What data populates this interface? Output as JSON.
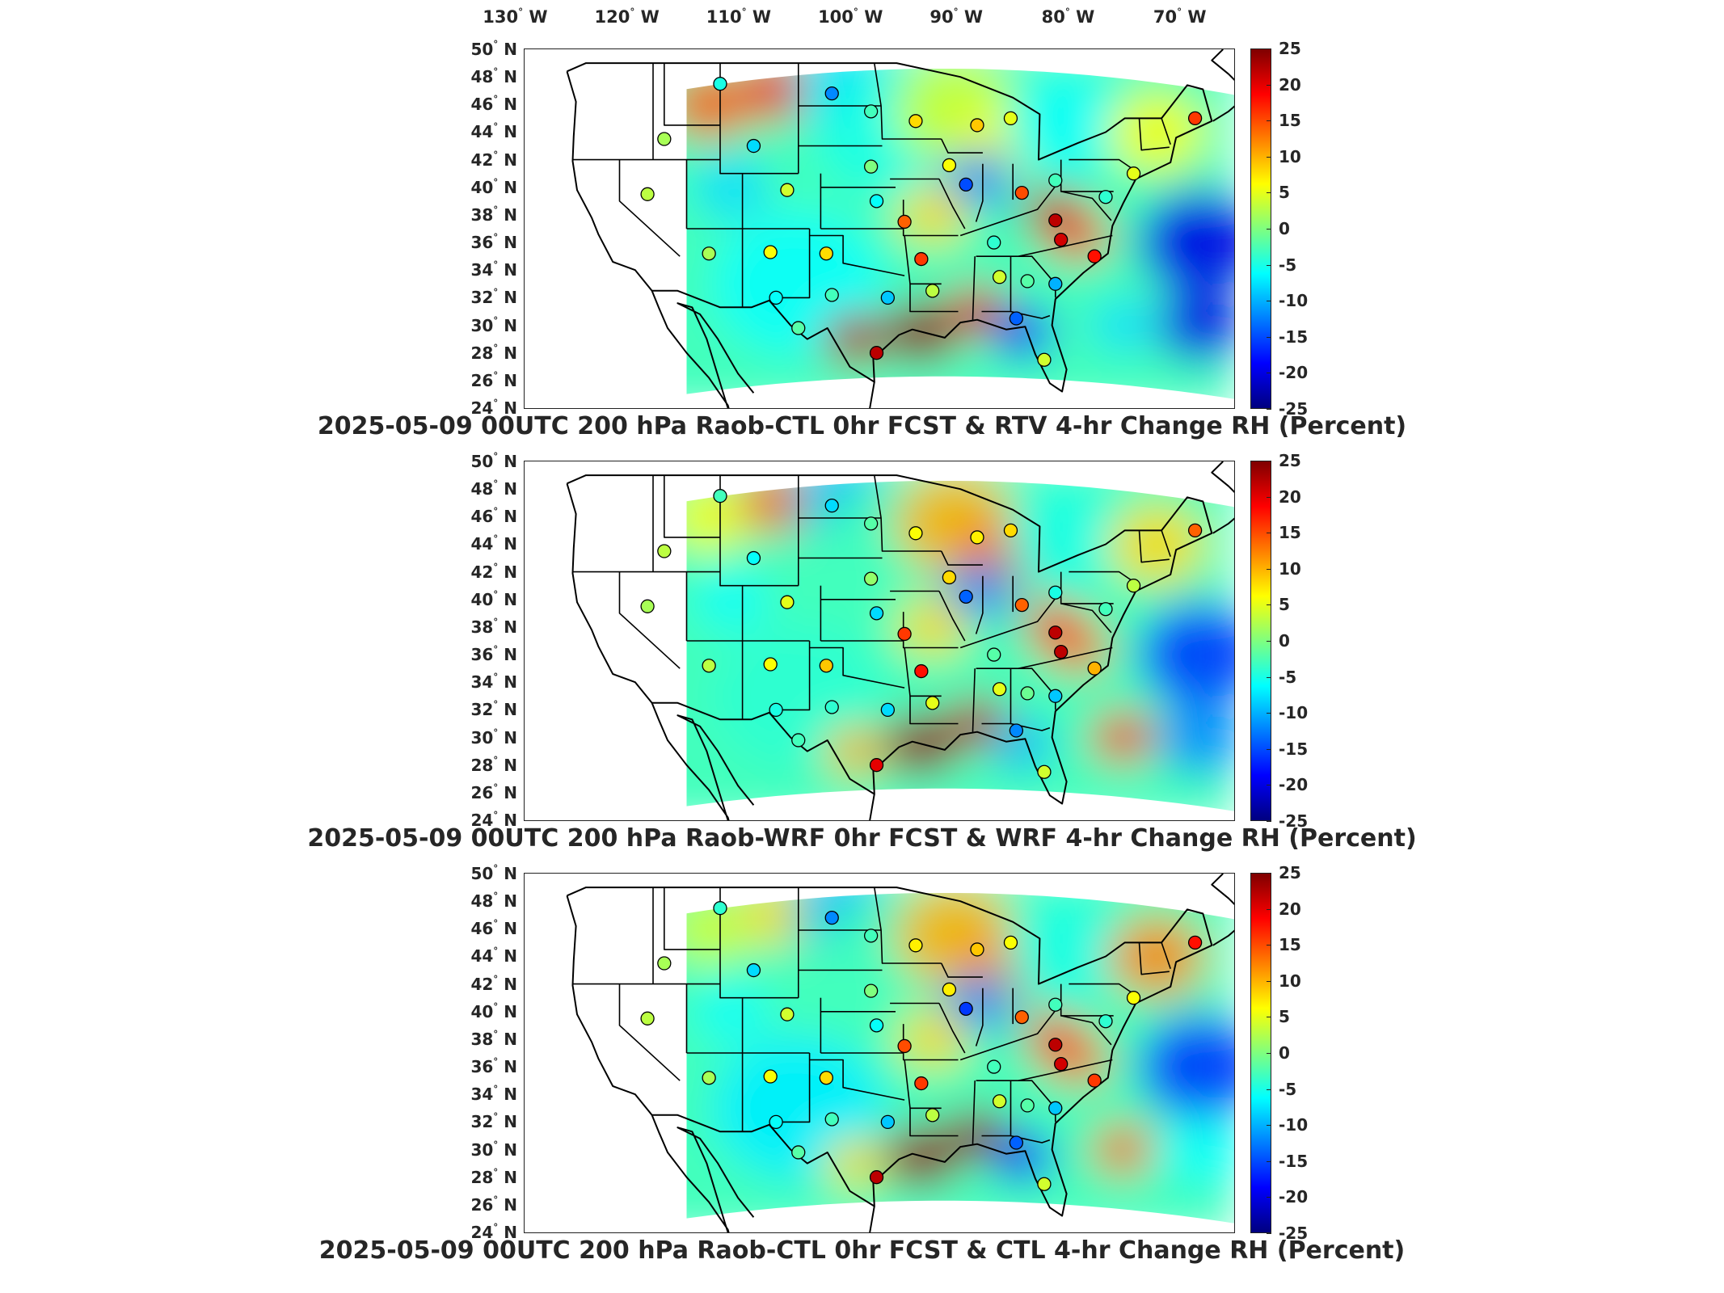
{
  "lon_labels": [
    {
      "deg": "130",
      "dir": "W"
    },
    {
      "deg": "120",
      "dir": "W"
    },
    {
      "deg": "110",
      "dir": "W"
    },
    {
      "deg": "100",
      "dir": "W"
    },
    {
      "deg": "90",
      "dir": "W"
    },
    {
      "deg": "80",
      "dir": "W"
    },
    {
      "deg": "70",
      "dir": "W"
    }
  ],
  "lat_labels": [
    {
      "deg": "50",
      "dir": "N"
    },
    {
      "deg": "48",
      "dir": "N"
    },
    {
      "deg": "46",
      "dir": "N"
    },
    {
      "deg": "44",
      "dir": "N"
    },
    {
      "deg": "42",
      "dir": "N"
    },
    {
      "deg": "40",
      "dir": "N"
    },
    {
      "deg": "38",
      "dir": "N"
    },
    {
      "deg": "36",
      "dir": "N"
    },
    {
      "deg": "34",
      "dir": "N"
    },
    {
      "deg": "32",
      "dir": "N"
    },
    {
      "deg": "30",
      "dir": "N"
    },
    {
      "deg": "28",
      "dir": "N"
    },
    {
      "deg": "26",
      "dir": "N"
    },
    {
      "deg": "24",
      "dir": "N"
    }
  ],
  "colorbar": {
    "ticks": [
      "25",
      "20",
      "15",
      "10",
      "5",
      "0",
      "-5",
      "-10",
      "-15",
      "-20",
      "-25"
    ],
    "min": -25,
    "max": 25,
    "colors": [
      "#00007f",
      "#0000ff",
      "#007fff",
      "#00ffff",
      "#7fff7f",
      "#ffff00",
      "#ff7f00",
      "#ff0000",
      "#7f0000"
    ]
  },
  "panels": [
    {
      "title": "2025-05-09 00UTC 200 hPa Raob-CTL 0hr FCST & RTV 4-hr Change RH (Percent)"
    },
    {
      "title": "2025-05-09 00UTC 200 hPa Raob-WRF 0hr FCST & WRF 4-hr Change RH (Percent)"
    },
    {
      "title": "2025-05-09 00UTC 200 hPa Raob-CTL 0hr FCST & CTL 4-hr Change RH (Percent)"
    }
  ],
  "stations": [
    {
      "lon": -111.0,
      "lat": 47.5,
      "v": [
        -5,
        -3,
        -4
      ]
    },
    {
      "lon": -101.0,
      "lat": 46.8,
      "v": [
        -12,
        -8,
        -12
      ]
    },
    {
      "lon": -97.5,
      "lat": 45.5,
      "v": [
        -3,
        -2,
        -3
      ]
    },
    {
      "lon": -93.5,
      "lat": 44.8,
      "v": [
        8,
        6,
        7
      ]
    },
    {
      "lon": -88.0,
      "lat": 44.5,
      "v": [
        9,
        7,
        9
      ]
    },
    {
      "lon": -85.0,
      "lat": 45.0,
      "v": [
        5,
        8,
        6
      ]
    },
    {
      "lon": -116.0,
      "lat": 43.5,
      "v": [
        2,
        3,
        2
      ]
    },
    {
      "lon": -108.0,
      "lat": 43.0,
      "v": [
        -8,
        -6,
        -8
      ]
    },
    {
      "lon": -97.5,
      "lat": 41.5,
      "v": [
        0,
        1,
        0
      ]
    },
    {
      "lon": -90.5,
      "lat": 41.6,
      "v": [
        6,
        8,
        7
      ]
    },
    {
      "lon": -89.0,
      "lat": 40.2,
      "v": [
        -15,
        -14,
        -16
      ]
    },
    {
      "lon": -84.0,
      "lat": 39.6,
      "v": [
        15,
        14,
        14
      ]
    },
    {
      "lon": -81.0,
      "lat": 40.5,
      "v": [
        -3,
        -5,
        -3
      ]
    },
    {
      "lon": -117.5,
      "lat": 39.5,
      "v": [
        3,
        2,
        3
      ]
    },
    {
      "lon": -105.0,
      "lat": 39.8,
      "v": [
        4,
        5,
        4
      ]
    },
    {
      "lon": -97.0,
      "lat": 39.0,
      "v": [
        -6,
        -8,
        -6
      ]
    },
    {
      "lon": -94.5,
      "lat": 37.5,
      "v": [
        14,
        16,
        15
      ]
    },
    {
      "lon": -81.0,
      "lat": 37.6,
      "v": [
        22,
        22,
        22
      ]
    },
    {
      "lon": -80.5,
      "lat": 36.2,
      "v": [
        21,
        22,
        21
      ]
    },
    {
      "lon": -76.5,
      "lat": 39.3,
      "v": [
        -4,
        -3,
        -4
      ]
    },
    {
      "lon": -77.5,
      "lat": 35.0,
      "v": [
        18,
        10,
        16
      ]
    },
    {
      "lon": -112.0,
      "lat": 35.2,
      "v": [
        2,
        3,
        2
      ]
    },
    {
      "lon": -106.5,
      "lat": 35.3,
      "v": [
        6,
        6,
        6
      ]
    },
    {
      "lon": -101.5,
      "lat": 35.2,
      "v": [
        8,
        9,
        8
      ]
    },
    {
      "lon": -93.0,
      "lat": 34.8,
      "v": [
        16,
        18,
        16
      ]
    },
    {
      "lon": -86.5,
      "lat": 36.0,
      "v": [
        -4,
        -2,
        -3
      ]
    },
    {
      "lon": -86.0,
      "lat": 33.5,
      "v": [
        4,
        5,
        4
      ]
    },
    {
      "lon": -83.5,
      "lat": 33.2,
      "v": [
        -2,
        -1,
        -2
      ]
    },
    {
      "lon": -81.0,
      "lat": 33.0,
      "v": [
        -10,
        -9,
        -9
      ]
    },
    {
      "lon": -106.0,
      "lat": 32.0,
      "v": [
        -6,
        -5,
        -6
      ]
    },
    {
      "lon": -101.0,
      "lat": 32.2,
      "v": [
        -3,
        -4,
        -3
      ]
    },
    {
      "lon": -96.0,
      "lat": 32.0,
      "v": [
        -9,
        -8,
        -9
      ]
    },
    {
      "lon": -92.0,
      "lat": 32.5,
      "v": [
        3,
        5,
        3
      ]
    },
    {
      "lon": -104.0,
      "lat": 29.8,
      "v": [
        -2,
        -3,
        -2
      ]
    },
    {
      "lon": -97.0,
      "lat": 28.0,
      "v": [
        22,
        20,
        22
      ]
    },
    {
      "lon": -84.5,
      "lat": 30.5,
      "v": [
        -14,
        -12,
        -14
      ]
    },
    {
      "lon": -82.0,
      "lat": 27.5,
      "v": [
        4,
        4,
        4
      ]
    },
    {
      "lon": -68.5,
      "lat": 45.0,
      "v": [
        16,
        14,
        18
      ]
    },
    {
      "lon": -74.0,
      "lat": 41.0,
      "v": [
        5,
        3,
        6
      ]
    }
  ],
  "features": [
    {
      "lon": -104,
      "lat": 33,
      "r": 7,
      "v": [
        -6,
        -4,
        -7
      ]
    },
    {
      "lon": -112,
      "lat": 46,
      "r": 3.5,
      "v": [
        14,
        6,
        4
      ]
    },
    {
      "lon": -106,
      "lat": 47,
      "r": 3,
      "v": [
        18,
        14,
        8
      ]
    },
    {
      "lon": -100,
      "lat": 47,
      "r": 4,
      "v": [
        -8,
        -10,
        -10
      ]
    },
    {
      "lon": -96,
      "lat": 44,
      "r": 6,
      "v": [
        -5,
        -3,
        -3
      ]
    },
    {
      "lon": -90,
      "lat": 45.5,
      "r": 5,
      "v": [
        4,
        10,
        10
      ]
    },
    {
      "lon": -86,
      "lat": 43,
      "r": 3.5,
      "v": [
        6,
        14,
        12
      ]
    },
    {
      "lon": -80,
      "lat": 44.5,
      "r": 5,
      "v": [
        -6,
        -5,
        -5
      ]
    },
    {
      "lon": -72,
      "lat": 44,
      "r": 4,
      "v": [
        6,
        8,
        12
      ]
    },
    {
      "lon": -88,
      "lat": 40.5,
      "r": 3,
      "v": [
        -12,
        -12,
        -12
      ]
    },
    {
      "lon": -81,
      "lat": 38,
      "r": 2.5,
      "v": [
        22,
        18,
        18
      ]
    },
    {
      "lon": -79,
      "lat": 36.5,
      "r": 2.5,
      "v": [
        16,
        14,
        14
      ]
    },
    {
      "lon": -68,
      "lat": 36,
      "r": 5,
      "v": [
        -20,
        -16,
        -16
      ]
    },
    {
      "lon": -68,
      "lat": 30,
      "r": 3.5,
      "v": [
        -20,
        -12,
        -6
      ]
    },
    {
      "lon": -75,
      "lat": 30,
      "r": 2.5,
      "v": [
        -8,
        18,
        14
      ]
    },
    {
      "lon": -93,
      "lat": 29.5,
      "r": 3,
      "v": [
        24,
        24,
        24
      ]
    },
    {
      "lon": -88,
      "lat": 31,
      "r": 2.5,
      "v": [
        20,
        22,
        24
      ]
    },
    {
      "lon": -99,
      "lat": 29,
      "r": 2.5,
      "v": [
        22,
        10,
        8
      ]
    },
    {
      "lon": -84,
      "lat": 29.5,
      "r": 2.5,
      "v": [
        -18,
        -10,
        -18
      ]
    },
    {
      "lon": -110,
      "lat": 40,
      "r": 3,
      "v": [
        -8,
        -6,
        -6
      ]
    },
    {
      "lon": -92,
      "lat": 38,
      "r": 3,
      "v": [
        8,
        8,
        8
      ]
    }
  ]
}
